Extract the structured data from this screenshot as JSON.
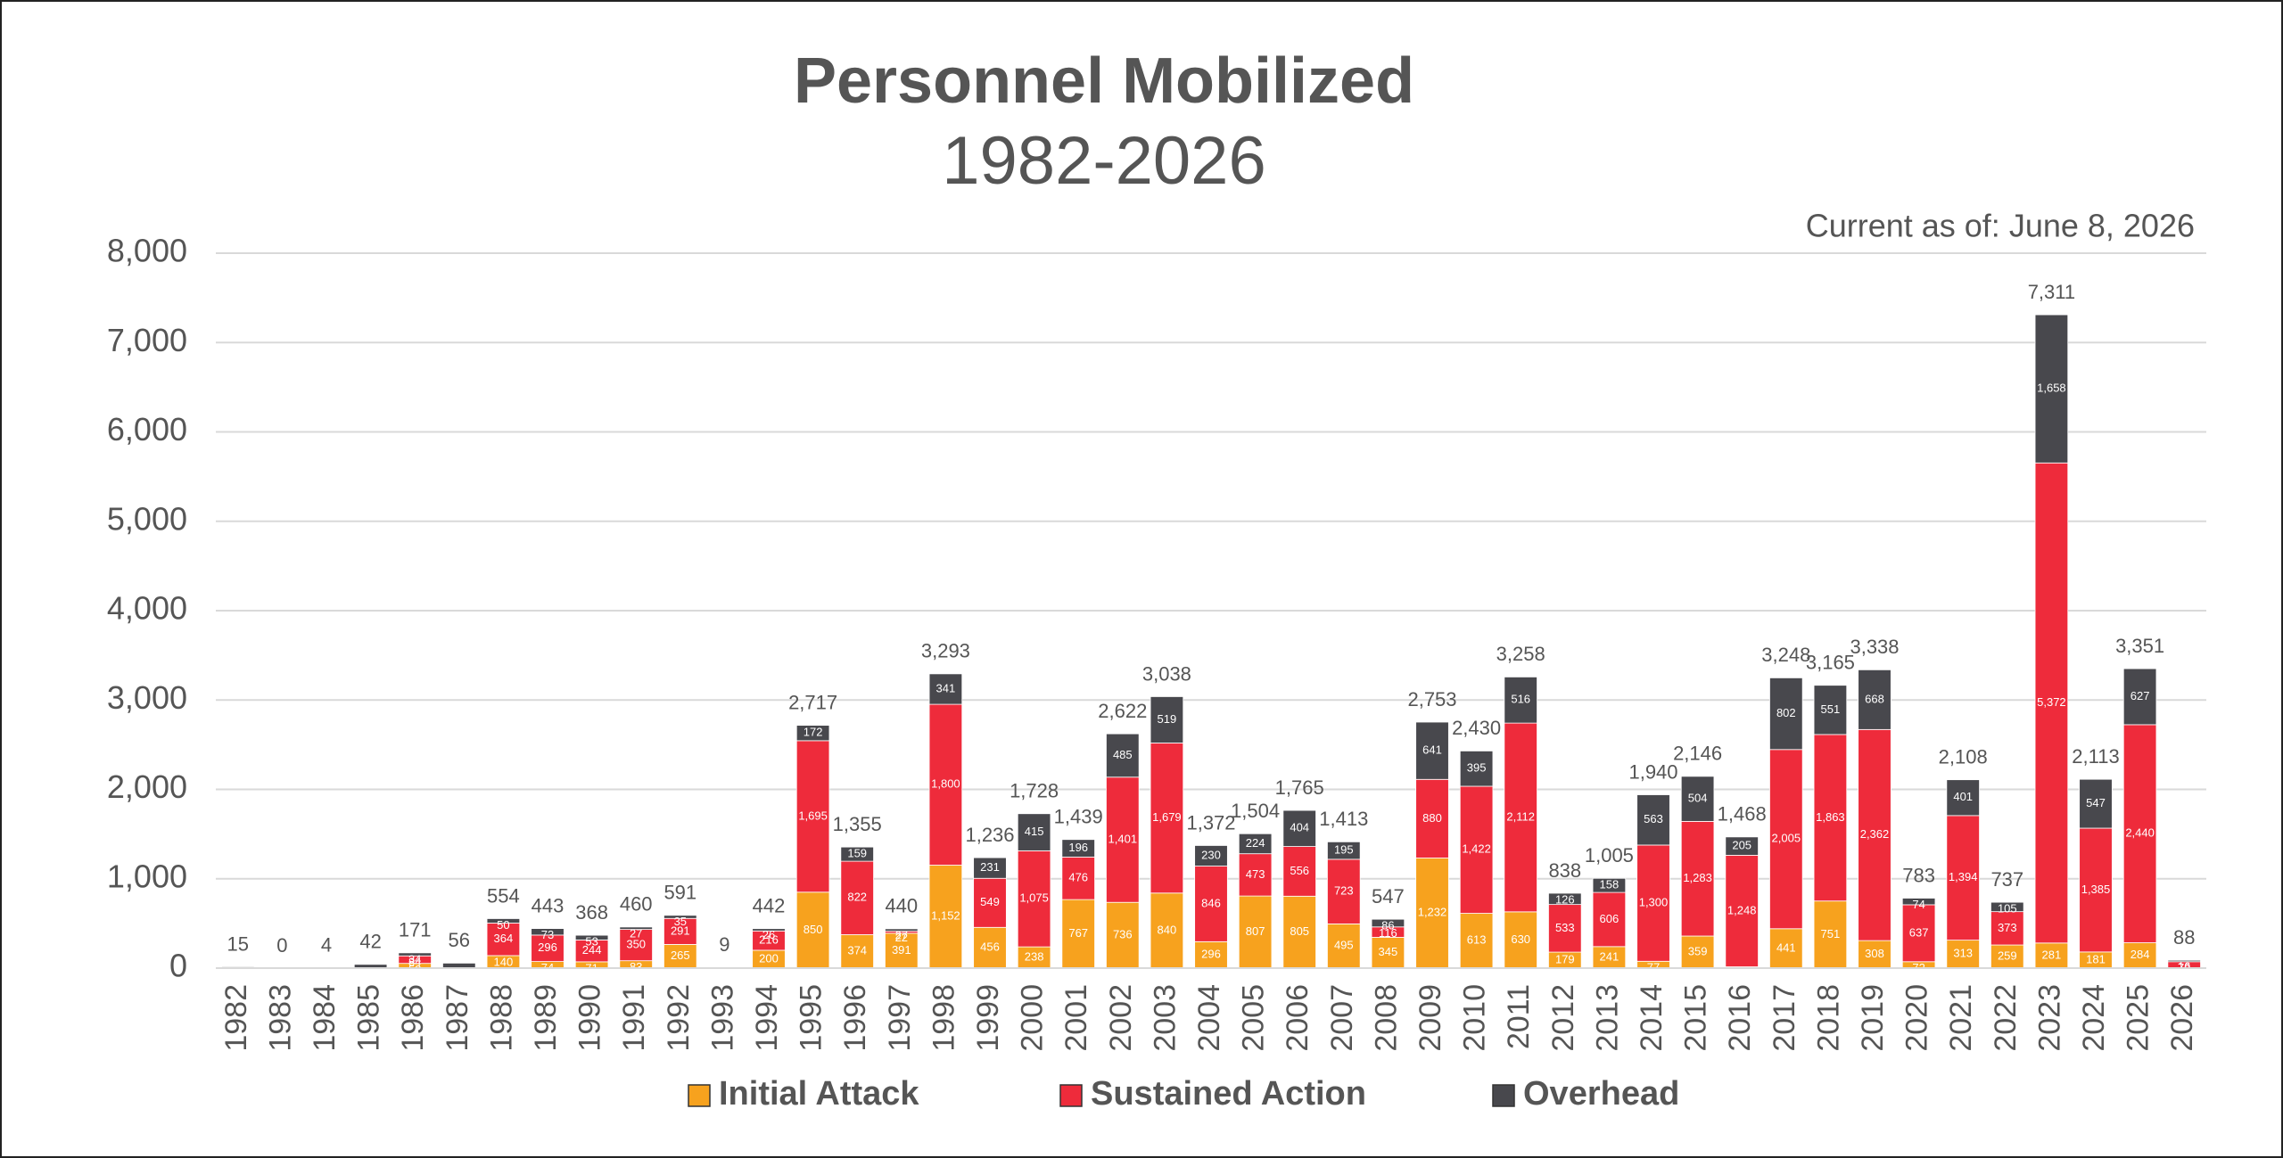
{
  "chart_data": {
    "type": "stacked_bar",
    "title": "Personnel Mobilized",
    "subtitle": "1982-2026",
    "annotation": "Current as of: June 8, 2026",
    "categories": [
      "1982",
      "1983",
      "1984",
      "1985",
      "1986",
      "1987",
      "1988",
      "1989",
      "1990",
      "1991",
      "1992",
      "1993",
      "1994",
      "1995",
      "1996",
      "1997",
      "1998",
      "1999",
      "2000",
      "2001",
      "2002",
      "2003",
      "2004",
      "2005",
      "2006",
      "2007",
      "2008",
      "2009",
      "2010",
      "2011",
      "2012",
      "2013",
      "2014",
      "2015",
      "2016",
      "2017",
      "2018",
      "2019",
      "2020",
      "2021",
      "2022",
      "2023",
      "2024",
      "2025",
      "2026"
    ],
    "series": [
      {
        "name": "Initial Attack",
        "color": "#f7a21e",
        "values": [
          0,
          0,
          0,
          0,
          53,
          0,
          140,
          74,
          71,
          83,
          265,
          0,
          200,
          850,
          374,
          391,
          1152,
          456,
          238,
          767,
          736,
          840,
          296,
          807,
          805,
          495,
          345,
          1232,
          613,
          630,
          179,
          241,
          77,
          359,
          15,
          441,
          751,
          308,
          72,
          313,
          259,
          281,
          181,
          284,
          0
        ],
        "value_labels": [
          null,
          null,
          null,
          null,
          "53",
          null,
          "140",
          "74",
          "71",
          "83",
          "265",
          null,
          "200",
          "850",
          "374",
          "391",
          "1,152",
          "456",
          "238",
          "767",
          "736",
          "840",
          "296",
          "807",
          "805",
          "495",
          "345",
          "1,232",
          "613",
          "630",
          "179",
          "241",
          "77",
          "359",
          "15",
          "441",
          "751",
          "308",
          "72",
          "313",
          "259",
          "281",
          "181",
          "284",
          null
        ]
      },
      {
        "name": "Sustained Action",
        "color": "#ee2b3b",
        "values": [
          0,
          0,
          0,
          0,
          84,
          0,
          364,
          296,
          244,
          350,
          291,
          0,
          216,
          1695,
          822,
          22,
          1800,
          549,
          1075,
          476,
          1401,
          1679,
          846,
          473,
          556,
          723,
          116,
          880,
          1422,
          2112,
          533,
          606,
          1300,
          1283,
          1248,
          2005,
          1863,
          2362,
          637,
          1394,
          373,
          5372,
          1385,
          2440,
          72
        ],
        "value_labels": [
          null,
          null,
          null,
          null,
          "84",
          null,
          "364",
          "296",
          "244",
          "350",
          "291",
          null,
          "216",
          "1,695",
          "822",
          "22",
          "1,800",
          "549",
          "1,075",
          "476",
          "1,401",
          "1,679",
          "846",
          "473",
          "556",
          "723",
          "116",
          "880",
          "1,422",
          "2,112",
          "533",
          "606",
          "1,300",
          "1,283",
          "1,248",
          "2,005",
          "1,863",
          "2,362",
          "637",
          "1,394",
          "373",
          "5,372",
          "1,385",
          "2,440",
          "72"
        ]
      },
      {
        "name": "Overhead",
        "color": "#48484d",
        "values": [
          15,
          0,
          4,
          42,
          34,
          56,
          50,
          73,
          53,
          27,
          35,
          9,
          26,
          172,
          159,
          27,
          341,
          231,
          415,
          196,
          485,
          519,
          230,
          224,
          404,
          195,
          86,
          641,
          395,
          516,
          126,
          158,
          563,
          504,
          205,
          802,
          551,
          668,
          74,
          401,
          105,
          1658,
          547,
          627,
          16
        ],
        "value_labels": [
          null,
          null,
          null,
          null,
          "34",
          null,
          "50",
          "73",
          "53",
          "27",
          "35",
          null,
          "26",
          "172",
          "159",
          "27",
          "341",
          "231",
          "415",
          "196",
          "485",
          "519",
          "230",
          "224",
          "404",
          "195",
          "86",
          "641",
          "395",
          "516",
          "126",
          "158",
          "563",
          "504",
          "205",
          "802",
          "551",
          "668",
          "74",
          "401",
          "105",
          "1,658",
          "547",
          "627",
          "16"
        ]
      }
    ],
    "totals": [
      15,
      0,
      4,
      42,
      171,
      56,
      554,
      443,
      368,
      460,
      591,
      9,
      442,
      2717,
      1355,
      440,
      3293,
      1236,
      1728,
      1439,
      2622,
      3038,
      1372,
      1504,
      1765,
      1413,
      547,
      2753,
      2430,
      3258,
      838,
      1005,
      1940,
      2146,
      1468,
      3248,
      3165,
      3338,
      783,
      2108,
      737,
      7311,
      2113,
      3351,
      88
    ],
    "total_labels": [
      "15",
      "0",
      "4",
      "42",
      "171",
      "56",
      "554",
      "443",
      "368",
      "460",
      "591",
      "9",
      "442",
      "2,717",
      "1,355",
      "440",
      "3,293",
      "1,236",
      "1,728",
      "1,439",
      "2,622",
      "3,038",
      "1,372",
      "1,504",
      "1,765",
      "1,413",
      "547",
      "2,753",
      "2,430",
      "3,258",
      "838",
      "1,005",
      "1,940",
      "2,146",
      "1,468",
      "3,248",
      "3,165",
      "3,338",
      "783",
      "2,108",
      "737",
      "7,311",
      "2,113",
      "3,351",
      "88"
    ],
    "ylim": [
      0,
      8000
    ],
    "yticks": [
      0,
      {
        "value": 1000,
        "label": "1,000"
      },
      {
        "value": 2000,
        "label": "2,000"
      },
      {
        "value": 3000,
        "label": "3,000"
      },
      {
        "value": 4000,
        "label": "4,000"
      },
      {
        "value": 5000,
        "label": "5,000"
      },
      {
        "value": 6000,
        "label": "6,000"
      },
      {
        "value": 7000,
        "label": "7,000"
      },
      {
        "value": 8000,
        "label": "8,000"
      }
    ],
    "grid": true,
    "legend": "bottom"
  }
}
